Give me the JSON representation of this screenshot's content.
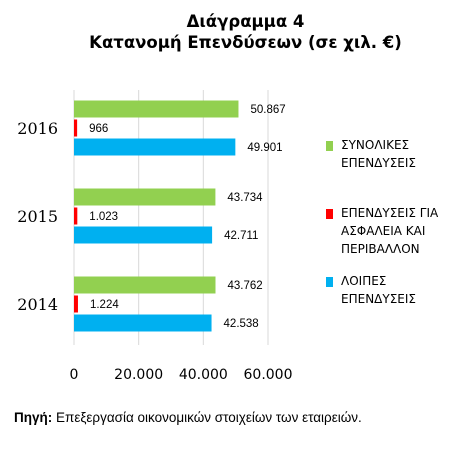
{
  "chart_data": {
    "type": "bar",
    "orientation": "horizontal",
    "title": "Διάγραμμα 4",
    "subtitle": "Κατανομή Επενδύσεων (σε χιλ. €)",
    "categories": [
      "2016",
      "2015",
      "2014"
    ],
    "series": [
      {
        "name": "ΣΥΝΟΛΙΚΕΣ ΕΠΕΝΔΥΣΕΙΣ",
        "color": "#92d050",
        "values": [
          50867,
          43734,
          43762
        ],
        "labels": [
          "50.867",
          "43.734",
          "43.762"
        ]
      },
      {
        "name": "ΕΠΕΝΔΥΣΕΙΣ ΓΙΑ ΑΣΦΑΛΕΙΑ ΚΑΙ ΠΕΡΙΒΑΛΛΟΝ",
        "color": "#ff0000",
        "values": [
          966,
          1023,
          1224
        ],
        "labels": [
          "966",
          "1.023",
          "1.224"
        ]
      },
      {
        "name": "ΛΟΙΠΕΣ ΕΠΕΝΔΥΣΕΙΣ",
        "color": "#00b0f0",
        "values": [
          49901,
          42711,
          42538
        ],
        "labels": [
          "49.901",
          "42.711",
          "42.538"
        ]
      }
    ],
    "xlim": [
      0,
      60000
    ],
    "xticks": [
      "0",
      "20.000",
      "40.000",
      "60.000"
    ],
    "grid": true,
    "legend": "right"
  },
  "source": {
    "label": "Πηγή:",
    "text": " Επεξεργασία οικονομικών στοιχείων των εταιρειών."
  }
}
